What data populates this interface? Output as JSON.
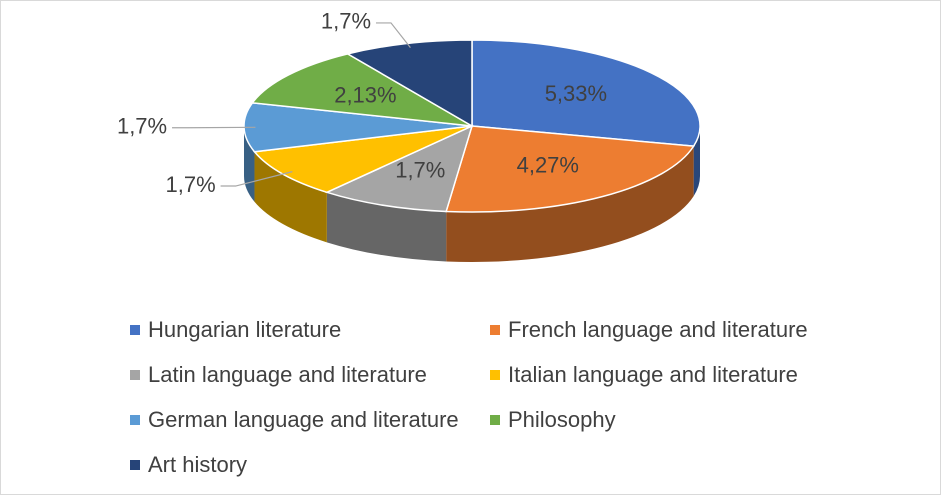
{
  "chart_data": {
    "type": "pie",
    "categories": [
      "Hungarian literature",
      "French language and literature",
      "Latin language and literature",
      "Italian language and literature",
      "German language and literature",
      "Philosophy",
      "Art history"
    ],
    "values": [
      5.33,
      4.27,
      1.7,
      1.7,
      1.7,
      2.13,
      1.7
    ],
    "value_labels": [
      "5,33%",
      "4,27%",
      "1,7%",
      "1,7%",
      "1,7%",
      "2,13%",
      "1,7%"
    ],
    "colors": [
      "#4472c4",
      "#ed7d31",
      "#a5a5a5",
      "#ffc000",
      "#5b9bd5",
      "#70ad47",
      "#264478"
    ],
    "legend": "bottom"
  }
}
